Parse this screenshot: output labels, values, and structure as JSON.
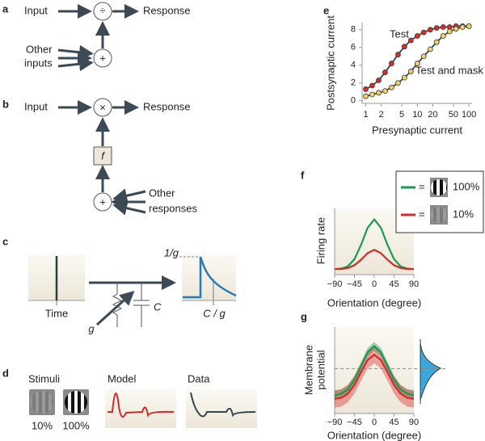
{
  "panels": {
    "a": {
      "label": "a",
      "input": "Input",
      "divide": "÷",
      "response": "Response",
      "other_inputs": [
        "Other",
        "inputs"
      ],
      "plus": "+"
    },
    "b": {
      "label": "b",
      "input": "Input",
      "multiply": "×",
      "response": "Response",
      "function": "f",
      "plus": "+",
      "other_responses": [
        "Other",
        "responses"
      ]
    },
    "c": {
      "label": "c",
      "time": "Time",
      "conductance": "g",
      "capacitance": "C",
      "peak": "1/g",
      "time_constant": "C / g"
    },
    "d": {
      "label": "d",
      "stimuli": "Stimuli",
      "model": "Model",
      "data": "Data",
      "contrasts": [
        "10%",
        "100%"
      ]
    }
  },
  "chart_data": [
    {
      "panel_label": "e",
      "type": "line",
      "xlabel": "Presynaptic current",
      "ylabel": "Postsynaptic current",
      "x": [
        1,
        1.33,
        1.78,
        2.37,
        3.16,
        4.22,
        5.62,
        7.5,
        10,
        13.3,
        17.8,
        23.7,
        31.6,
        42.2,
        56.2,
        75,
        100
      ],
      "xlog": true,
      "xlim": [
        0.85,
        115
      ],
      "xticks": [
        1,
        2,
        5,
        10,
        20,
        50,
        100
      ],
      "ylim": [
        -0.3,
        8.8
      ],
      "yticks": [
        0,
        2,
        4,
        6,
        8
      ],
      "markers": true,
      "series": [
        {
          "name": "Test",
          "color": "#d62f2f",
          "line_color": "#37474f",
          "values": [
            1.3,
            1.7,
            2.3,
            3.2,
            4.2,
            5.2,
            6.1,
            6.8,
            7.3,
            7.7,
            8.0,
            8.2,
            8.3,
            8.3,
            8.4,
            8.4,
            8.4
          ]
        },
        {
          "name": "Test and mask",
          "color": "#f2d26b",
          "line_color": "#37474f",
          "values": [
            0.5,
            0.7,
            0.9,
            1.1,
            1.5,
            2.0,
            2.6,
            3.3,
            4.2,
            5.0,
            5.8,
            6.6,
            7.3,
            7.8,
            8.1,
            8.3,
            8.4
          ]
        }
      ]
    },
    {
      "panel_label": "f",
      "type": "line",
      "xlabel": "Orientation (degree)",
      "ylabel": "Firing rate",
      "x": [
        -90,
        -75,
        -60,
        -45,
        -30,
        -15,
        0,
        15,
        30,
        45,
        60,
        75,
        90
      ],
      "xlim": [
        -90,
        90
      ],
      "xticks": [
        {
          "value": -90,
          "label": "−90"
        },
        {
          "value": -45,
          "label": "−45"
        },
        0,
        45,
        90
      ],
      "ylim": [
        0,
        1.2
      ],
      "legend": "outside-right",
      "series": [
        {
          "name": "100%",
          "color": "#1a9a4e",
          "values": [
            0.1,
            0.11,
            0.15,
            0.28,
            0.54,
            0.85,
            1.0,
            0.85,
            0.54,
            0.28,
            0.15,
            0.11,
            0.1
          ]
        },
        {
          "name": "10%",
          "color": "#d42a2a",
          "values": [
            0.1,
            0.1,
            0.12,
            0.17,
            0.27,
            0.39,
            0.45,
            0.39,
            0.27,
            0.17,
            0.12,
            0.1,
            0.1
          ]
        }
      ]
    },
    {
      "panel_label": "g",
      "type": "line",
      "xlabel": "Orientation (degree)",
      "ylabel": [
        "Membrane",
        "potential"
      ],
      "x": [
        -90,
        -75,
        -60,
        -45,
        -30,
        -15,
        0,
        15,
        30,
        45,
        60,
        75,
        90
      ],
      "xlim": [
        -90,
        90
      ],
      "xticks": [
        {
          "value": -90,
          "label": "−90"
        },
        {
          "value": -45,
          "label": "−45"
        },
        0,
        45,
        90
      ],
      "ylim": [
        0,
        1
      ],
      "reference_line": 0.52,
      "series": [
        {
          "color": "#1a9a4e",
          "values": [
            0.21,
            0.23,
            0.28,
            0.39,
            0.55,
            0.71,
            0.78,
            0.71,
            0.55,
            0.39,
            0.28,
            0.23,
            0.21
          ],
          "errors": [
            0.05,
            0.05,
            0.05,
            0.05,
            0.05,
            0.05,
            0.05,
            0.05,
            0.05,
            0.05,
            0.05,
            0.05,
            0.05
          ]
        },
        {
          "color": "#d42a2a",
          "values": [
            0.17,
            0.18,
            0.23,
            0.33,
            0.48,
            0.62,
            0.68,
            0.62,
            0.48,
            0.33,
            0.23,
            0.18,
            0.17
          ],
          "errors": [
            0.1,
            0.1,
            0.1,
            0.1,
            0.1,
            0.1,
            0.1,
            0.1,
            0.1,
            0.1,
            0.1,
            0.1,
            0.1
          ]
        }
      ]
    }
  ]
}
